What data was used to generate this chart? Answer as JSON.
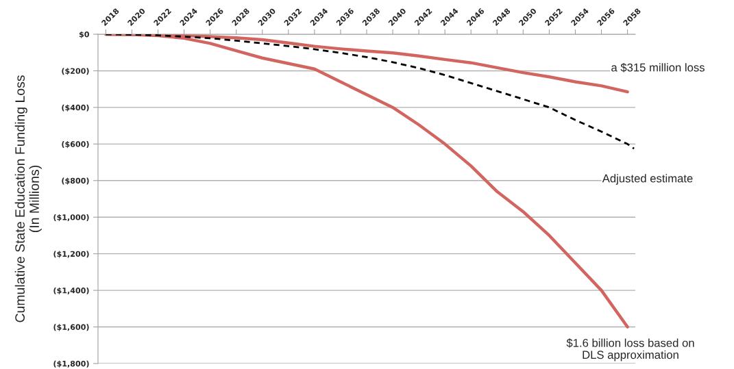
{
  "chart_data": {
    "type": "line",
    "ylabel": "Cumulative State Education Funding Loss\n(In Millions)",
    "xlim": [
      2017.4,
      2058.6
    ],
    "xticks": [
      2018,
      2020,
      2022,
      2024,
      2026,
      2028,
      2030,
      2032,
      2034,
      2036,
      2038,
      2040,
      2042,
      2044,
      2046,
      2048,
      2050,
      2052,
      2054,
      2056,
      2058
    ],
    "ylim": [
      -1800,
      0
    ],
    "yticks": [
      {
        "value": 0,
        "label": "$0"
      },
      {
        "value": -200,
        "label": "($200)"
      },
      {
        "value": -400,
        "label": "($400)"
      },
      {
        "value": -600,
        "label": "($600)"
      },
      {
        "value": -800,
        "label": "($800)"
      },
      {
        "value": -1000,
        "label": "($1,000)"
      },
      {
        "value": -1200,
        "label": "($1,200)"
      },
      {
        "value": -1400,
        "label": "($1,400)"
      },
      {
        "value": -1600,
        "label": "($1,600)"
      },
      {
        "value": -1800,
        "label": "($1,800)"
      }
    ],
    "grid": "y",
    "legend": false,
    "series": [
      {
        "color": "#d2655f",
        "line_style": "solid",
        "x": [
          2018,
          2020,
          2022,
          2024,
          2026,
          2028,
          2030,
          2032,
          2034,
          2036,
          2038,
          2040,
          2042,
          2044,
          2046,
          2048,
          2050,
          2052,
          2054,
          2056,
          2058
        ],
        "values": [
          0,
          -1,
          -3,
          -8,
          -13,
          -20,
          -30,
          -48,
          -66,
          -80,
          -92,
          -102,
          -119,
          -138,
          -156,
          -183,
          -210,
          -233,
          -260,
          -282,
          -315
        ]
      },
      {
        "color": "#000000",
        "line_style": "dashed",
        "x": [
          2018,
          2020,
          2022,
          2024,
          2026,
          2028,
          2030,
          2032,
          2034,
          2036,
          2038,
          2040,
          2042,
          2044,
          2046,
          2048,
          2050,
          2052,
          2054,
          2056,
          2058,
          2058.5
        ],
        "values": [
          0,
          -2,
          -6,
          -13,
          -22,
          -35,
          -50,
          -65,
          -82,
          -102,
          -125,
          -153,
          -185,
          -223,
          -267,
          -311,
          -355,
          -400,
          -469,
          -532,
          -600,
          -625
        ]
      },
      {
        "color": "#d2655f",
        "line_style": "solid",
        "x": [
          2018,
          2020,
          2022,
          2024,
          2026,
          2028,
          2030,
          2032,
          2034,
          2036,
          2038,
          2040,
          2042,
          2044,
          2046,
          2048,
          2050,
          2052,
          2054,
          2056,
          2058
        ],
        "values": [
          0,
          -2,
          -8,
          -22,
          -50,
          -90,
          -130,
          -160,
          -190,
          -260,
          -330,
          -400,
          -495,
          -600,
          -720,
          -860,
          -970,
          -1100,
          -1250,
          -1400,
          -1600
        ]
      }
    ],
    "annotations": [
      "a $315 million loss",
      "Adjusted estimate",
      "$1.6 billion loss based on\nDLS approximation"
    ]
  }
}
